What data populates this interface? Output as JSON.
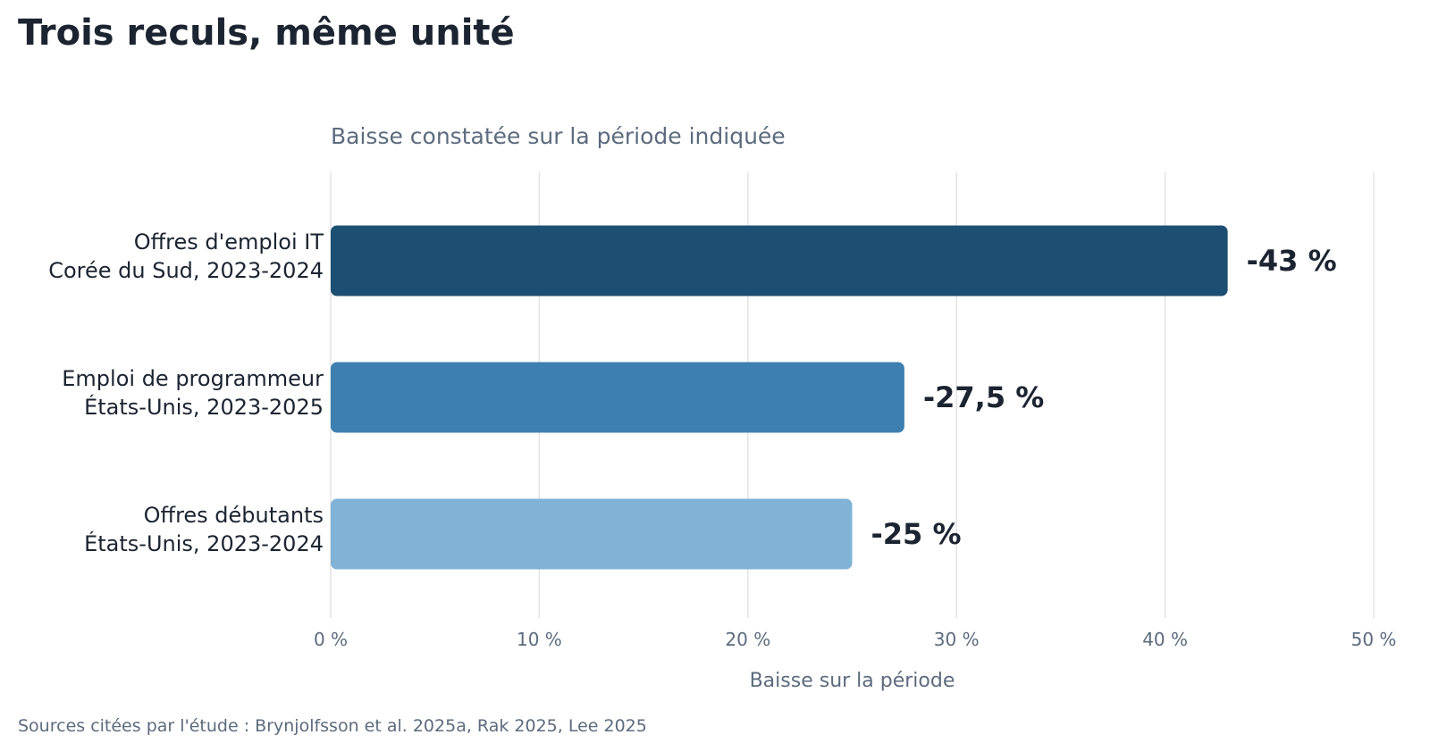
{
  "title": "Trois reculs, même unité",
  "source": "Sources citées par l'étude : Brynjolfsson et al. 2025a, Rak 2025, Lee 2025",
  "chart_data": {
    "type": "bar",
    "orientation": "horizontal",
    "subtitle": "Baisse constatée sur la période indiquée",
    "xlabel": "Baisse sur la période",
    "ylabel": "",
    "xlim": [
      0,
      50
    ],
    "xticks": [
      {
        "value": 0,
        "label": "0 %"
      },
      {
        "value": 10,
        "label": "10 %"
      },
      {
        "value": 20,
        "label": "20 %"
      },
      {
        "value": 30,
        "label": "30 %"
      },
      {
        "value": 40,
        "label": "40 %"
      },
      {
        "value": 50,
        "label": "50 %"
      }
    ],
    "grid": true,
    "legend": "none",
    "categories": [
      [
        "Offres d'emploi IT",
        "Corée du Sud, 2023-2024"
      ],
      [
        "Emploi de programmeur",
        "États-Unis, 2023-2025"
      ],
      [
        "Offres débutants",
        "États-Unis, 2023-2024"
      ]
    ],
    "values": [
      43,
      27.5,
      25
    ],
    "value_labels": [
      "-43 %",
      "-27,5 %",
      "-25 %"
    ],
    "colors": [
      "#1c4f71",
      "#3e7fb1",
      "#80b3d6"
    ]
  }
}
